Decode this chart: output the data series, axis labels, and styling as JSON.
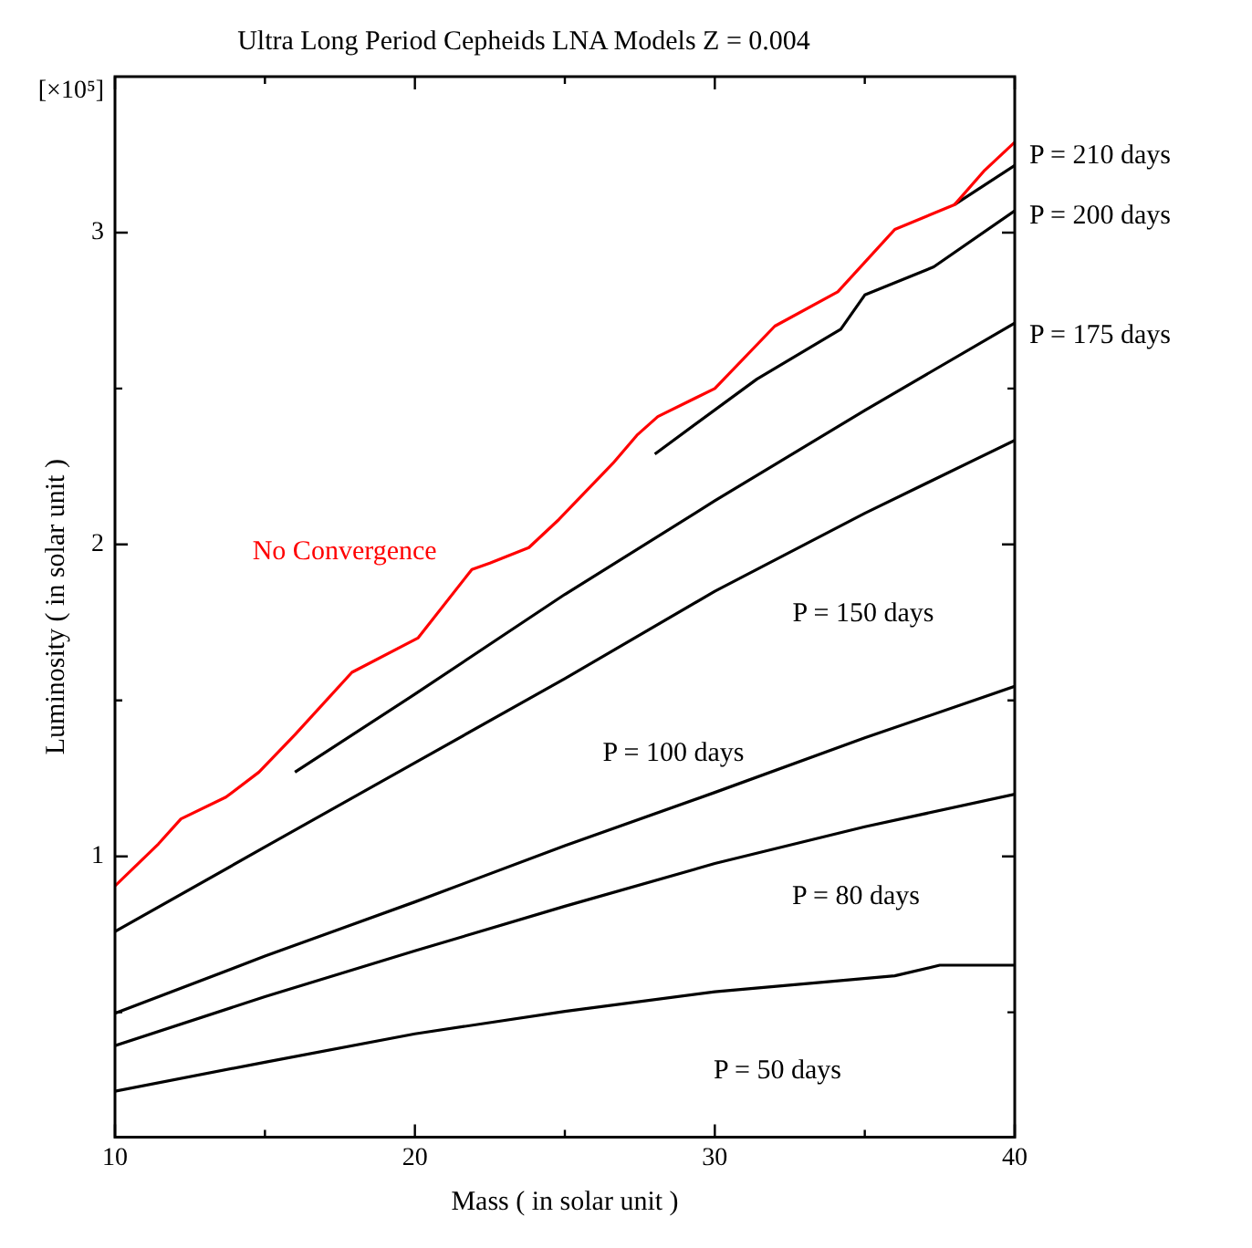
{
  "chart_data": {
    "type": "line",
    "title": "Ultra Long Period Cepheids LNA Models Z = 0.004",
    "xlabel": "Mass ( in solar unit )",
    "ylabel": "Luminosity ( in solar unit )",
    "annotations": [
      "[×10⁵]"
    ],
    "xlim": [
      10,
      40
    ],
    "xticks": [
      10,
      {
        "value": 15,
        "label": null
      },
      20,
      {
        "value": 25,
        "label": null
      },
      30,
      {
        "value": 35,
        "label": null
      },
      40
    ],
    "ylim": [
      0.1,
      3.5
    ],
    "yticks": [
      {
        "value": 0.5,
        "label": null
      },
      1,
      {
        "value": 1.5,
        "label": null
      },
      2,
      {
        "value": 2.5,
        "label": null
      },
      3
    ],
    "grid": false,
    "marker": "none",
    "line_style": "solid",
    "series": [
      {
        "name": "No Convergence",
        "color": "#ff0000",
        "x": [
          10,
          11.45,
          12.2,
          13.7,
          14.8,
          16,
          17.9,
          20.1,
          21.9,
          22.5,
          23.8,
          24.8,
          25.7,
          26.6,
          27.4,
          28.1,
          30,
          32,
          34.1,
          36,
          38,
          39,
          40
        ],
        "values": [
          0.905,
          1.04,
          1.12,
          1.19,
          1.27,
          1.39,
          1.59,
          1.7,
          1.92,
          1.94,
          1.99,
          2.08,
          2.17,
          2.26,
          2.35,
          2.41,
          2.5,
          2.7,
          2.81,
          3.01,
          3.09,
          3.2,
          3.29
        ]
      },
      {
        "name": "P = 210 days",
        "color": "#000000",
        "x": [
          38,
          40
        ],
        "values": [
          3.09,
          3.215
        ]
      },
      {
        "name": "P = 200 days",
        "color": "#000000",
        "x": [
          28,
          31.4,
          34.2,
          35,
          37.3,
          40
        ],
        "values": [
          2.29,
          2.53,
          2.69,
          2.8,
          2.89,
          3.07
        ]
      },
      {
        "name": "P = 175 days",
        "color": "#000000",
        "x": [
          16,
          20,
          25,
          30,
          35,
          40
        ],
        "values": [
          1.27,
          1.52,
          1.84,
          2.14,
          2.43,
          2.71
        ]
      },
      {
        "name": "P = 150 days",
        "color": "#000000",
        "x": [
          10,
          15,
          20,
          25,
          30,
          35,
          40
        ],
        "values": [
          0.759,
          1.03,
          1.3,
          1.57,
          1.85,
          2.1,
          2.334
        ]
      },
      {
        "name": "P = 100 days",
        "color": "#000000",
        "x": [
          10,
          15,
          20,
          25,
          30,
          35,
          40
        ],
        "values": [
          0.497,
          0.68,
          0.854,
          1.034,
          1.205,
          1.38,
          1.545
        ]
      },
      {
        "name": "P = 80 days",
        "color": "#000000",
        "x": [
          10,
          15,
          20,
          25,
          30,
          35,
          40
        ],
        "values": [
          0.393,
          0.55,
          0.697,
          0.84,
          0.977,
          1.095,
          1.199
        ]
      },
      {
        "name": "P = 50 days",
        "color": "#000000",
        "x": [
          10,
          15,
          20,
          25,
          30,
          36,
          37.5,
          40
        ],
        "values": [
          0.247,
          0.34,
          0.431,
          0.503,
          0.566,
          0.617,
          0.651,
          0.651
        ]
      }
    ]
  }
}
